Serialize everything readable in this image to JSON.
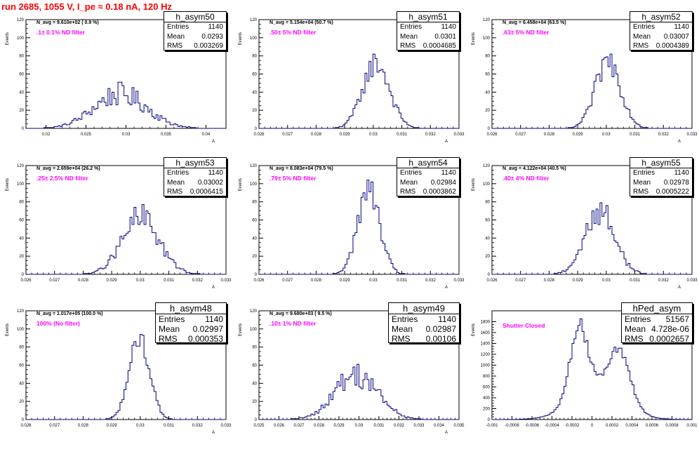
{
  "header": {
    "title": "run 2685,  1055 V, I_pe ≈ 0.18 nA, 120 Hz"
  },
  "colors": {
    "hist_line": "#000080",
    "annotation": "#ff00ff",
    "title": "#ff0000"
  },
  "chart_data": [
    {
      "type": "histogram",
      "name": "h_asym50",
      "ylabel": "Events",
      "xlabel": "A",
      "xlim": [
        0.0175,
        0.0425
      ],
      "ylim": [
        0,
        120
      ],
      "xticks": [
        0.02,
        0.025,
        0.03,
        0.035,
        0.04
      ],
      "xtick_labels": [
        "0.02",
        "0.025",
        "0.03",
        "0.035",
        "0.04"
      ],
      "yticks": [
        0,
        20,
        40,
        60,
        80,
        100,
        120
      ],
      "navg_label": "N_avg = 9.610e+02 ( 0.9 %)",
      "filter_label": ".1± 0.1% ND filter",
      "stats": {
        "Entries": "1140",
        "Mean": "0.0293",
        "RMS": "0.003269"
      },
      "shape": {
        "mean": 0.0293,
        "sigma": 0.00327,
        "peak": 38,
        "noise": 0.35
      }
    },
    {
      "type": "histogram",
      "name": "h_asym51",
      "ylabel": "Events",
      "xlabel": "A",
      "xlim": [
        0.026,
        0.033
      ],
      "ylim": [
        0,
        120
      ],
      "xticks": [
        0.026,
        0.027,
        0.028,
        0.029,
        0.03,
        0.031,
        0.032,
        0.033
      ],
      "xtick_labels": [
        "0.026",
        "0.027",
        "0.028",
        "0.029",
        "0.03",
        "0.031",
        "0.032",
        "0.033"
      ],
      "yticks": [
        0,
        20,
        40,
        60,
        80,
        100,
        120
      ],
      "navg_label": "N_avg = 5.154e+04 (50.7 %)",
      "filter_label": ".50± 5% ND filter",
      "stats": {
        "Entries": "1140",
        "Mean": "0.0301",
        "RMS": "0.0004685"
      },
      "shape": {
        "mean": 0.0301,
        "sigma": 0.000469,
        "peak": 72,
        "noise": 0.2
      }
    },
    {
      "type": "histogram",
      "name": "h_asym52",
      "ylabel": "Events",
      "xlabel": "A",
      "xlim": [
        0.026,
        0.033
      ],
      "ylim": [
        0,
        120
      ],
      "xticks": [
        0.026,
        0.027,
        0.028,
        0.029,
        0.03,
        0.031,
        0.032,
        0.033
      ],
      "xtick_labels": [
        "0.026",
        "0.027",
        "0.028",
        "0.029",
        "0.03",
        "0.031",
        "0.032",
        "0.033"
      ],
      "yticks": [
        0,
        20,
        40,
        60,
        80,
        100,
        120
      ],
      "navg_label": "N_avg = 6.458e+04 (63.5 %)",
      "filter_label": ".63± 5% ND filter",
      "stats": {
        "Entries": "1140",
        "Mean": "0.03007",
        "RMS": "0.0004389"
      },
      "shape": {
        "mean": 0.03007,
        "sigma": 0.000439,
        "peak": 75,
        "noise": 0.22
      }
    },
    {
      "type": "histogram",
      "name": "h_asym53",
      "ylabel": "Events",
      "xlabel": "A",
      "xlim": [
        0.026,
        0.033
      ],
      "ylim": [
        0,
        120
      ],
      "xticks": [
        0.026,
        0.027,
        0.028,
        0.029,
        0.03,
        0.031,
        0.032,
        0.033
      ],
      "xtick_labels": [
        "0.026",
        "0.027",
        "0.028",
        "0.029",
        "0.03",
        "0.031",
        "0.032",
        "0.033"
      ],
      "yticks": [
        0,
        20,
        40,
        60,
        80,
        100,
        120
      ],
      "navg_label": "N_avg = 2.659e+04 (26.2 %)",
      "filter_label": ".25± 2.5% ND filter",
      "stats": {
        "Entries": "1140",
        "Mean": "0.03002",
        "RMS": "0.0006415"
      },
      "shape": {
        "mean": 0.03002,
        "sigma": 0.000642,
        "peak": 62,
        "noise": 0.28
      }
    },
    {
      "type": "histogram",
      "name": "h_asym54",
      "ylabel": "Events",
      "xlabel": "A",
      "xlim": [
        0.026,
        0.033
      ],
      "ylim": [
        0,
        120
      ],
      "xticks": [
        0.026,
        0.027,
        0.028,
        0.029,
        0.03,
        0.031,
        0.032,
        0.033
      ],
      "xtick_labels": [
        "0.026",
        "0.027",
        "0.028",
        "0.029",
        "0.03",
        "0.031",
        "0.032",
        "0.033"
      ],
      "yticks": [
        0,
        20,
        40,
        60,
        80,
        100,
        120
      ],
      "navg_label": "N_avg = 8.083e+04 (79.5 %)",
      "filter_label": ".79± 5% ND filter",
      "stats": {
        "Entries": "1140",
        "Mean": "0.02984",
        "RMS": "0.0003862"
      },
      "shape": {
        "mean": 0.02984,
        "sigma": 0.000386,
        "peak": 92,
        "noise": 0.18
      }
    },
    {
      "type": "histogram",
      "name": "h_asym55",
      "ylabel": "Events",
      "xlabel": "A",
      "xlim": [
        0.026,
        0.033
      ],
      "ylim": [
        0,
        120
      ],
      "xticks": [
        0.026,
        0.027,
        0.028,
        0.029,
        0.03,
        0.031,
        0.032,
        0.033
      ],
      "xtick_labels": [
        "0.026",
        "0.027",
        "0.028",
        "0.029",
        "0.03",
        "0.031",
        "0.032",
        "0.033"
      ],
      "yticks": [
        0,
        20,
        40,
        60,
        80,
        100,
        120
      ],
      "navg_label": "N_avg = 4.122e+04 (40.5 %)",
      "filter_label": ".40± 4% ND filter",
      "stats": {
        "Entries": "1140",
        "Mean": "0.02978",
        "RMS": "0.0005222"
      },
      "shape": {
        "mean": 0.02978,
        "sigma": 0.000522,
        "peak": 70,
        "noise": 0.25
      }
    },
    {
      "type": "histogram",
      "name": "h_asym48",
      "ylabel": "Events",
      "xlabel": "A",
      "xlim": [
        0.026,
        0.033
      ],
      "ylim": [
        0,
        120
      ],
      "xticks": [
        0.026,
        0.027,
        0.028,
        0.029,
        0.03,
        0.031,
        0.032,
        0.033
      ],
      "xtick_labels": [
        "0.026",
        "0.027",
        "0.028",
        "0.029",
        "0.03",
        "0.031",
        "0.032",
        "0.033"
      ],
      "yticks": [
        0,
        20,
        40,
        60,
        80,
        100,
        120
      ],
      "navg_label": "N_avg = 1.017e+05 (100.0 %)",
      "filter_label": "100% (No filter)",
      "stats": {
        "Entries": "1140",
        "Mean": "0.02997",
        "RMS": "0.000353"
      },
      "shape": {
        "mean": 0.02997,
        "sigma": 0.000353,
        "peak": 90,
        "noise": 0.15
      }
    },
    {
      "type": "histogram",
      "name": "h_asym49",
      "ylabel": "Events",
      "xlabel": "A",
      "xlim": [
        0.025,
        0.035
      ],
      "ylim": [
        0,
        120
      ],
      "xticks": [
        0.025,
        0.026,
        0.027,
        0.028,
        0.029,
        0.03,
        0.031,
        0.032,
        0.033,
        0.034,
        0.035
      ],
      "xtick_labels": [
        "0.025",
        "0.026",
        "0.027",
        "0.028",
        "0.029",
        "0.03",
        "0.031",
        "0.032",
        "0.033",
        "0.034",
        "0.035"
      ],
      "yticks": [
        0,
        20,
        40,
        60,
        80,
        100,
        120
      ],
      "navg_label": "N_avg = 9.680e+03 ( 9.5 %)",
      "filter_label": ".10± 1% ND filter",
      "stats": {
        "Entries": "1140",
        "Mean": "0.02987",
        "RMS": "0.00106"
      },
      "shape": {
        "mean": 0.02987,
        "sigma": 0.00106,
        "peak": 50,
        "noise": 0.3
      }
    },
    {
      "type": "histogram",
      "name": "hPed_asym",
      "ylabel": "Events",
      "xlabel": "",
      "xlim": [
        -0.001,
        0.001
      ],
      "ylim": [
        0,
        2000
      ],
      "xticks": [
        -0.001,
        -0.0008,
        -0.0006,
        -0.0004,
        -0.0002,
        0,
        0.0002,
        0.0004,
        0.0006,
        0.0008,
        0.001
      ],
      "xtick_labels": [
        "-0.001",
        "-0.0008",
        "-0.0006",
        "-0.0004",
        "-0.0002",
        "0",
        "0.0002",
        "0.0004",
        "0.0006",
        "0.0008",
        "0.001"
      ],
      "yticks": [
        0,
        200,
        400,
        600,
        800,
        1000,
        1200,
        1400,
        1600,
        1800
      ],
      "navg_label": "",
      "filter_label": "Shutter Closed",
      "stats": {
        "Entries": "51567",
        "Mean": "4.728e-06",
        "RMS": "0.0002657"
      },
      "shape": {
        "bimodal": true,
        "peak1": {
          "mean": -0.00013,
          "sigma": 9e-05,
          "amp": 1300
        },
        "peak2": {
          "mean": 0.00027,
          "sigma": 0.00011,
          "amp": 900
        },
        "base": {
          "mean": 5e-05,
          "sigma": 0.00025,
          "amp": 550
        },
        "noise": 0.08
      }
    }
  ]
}
